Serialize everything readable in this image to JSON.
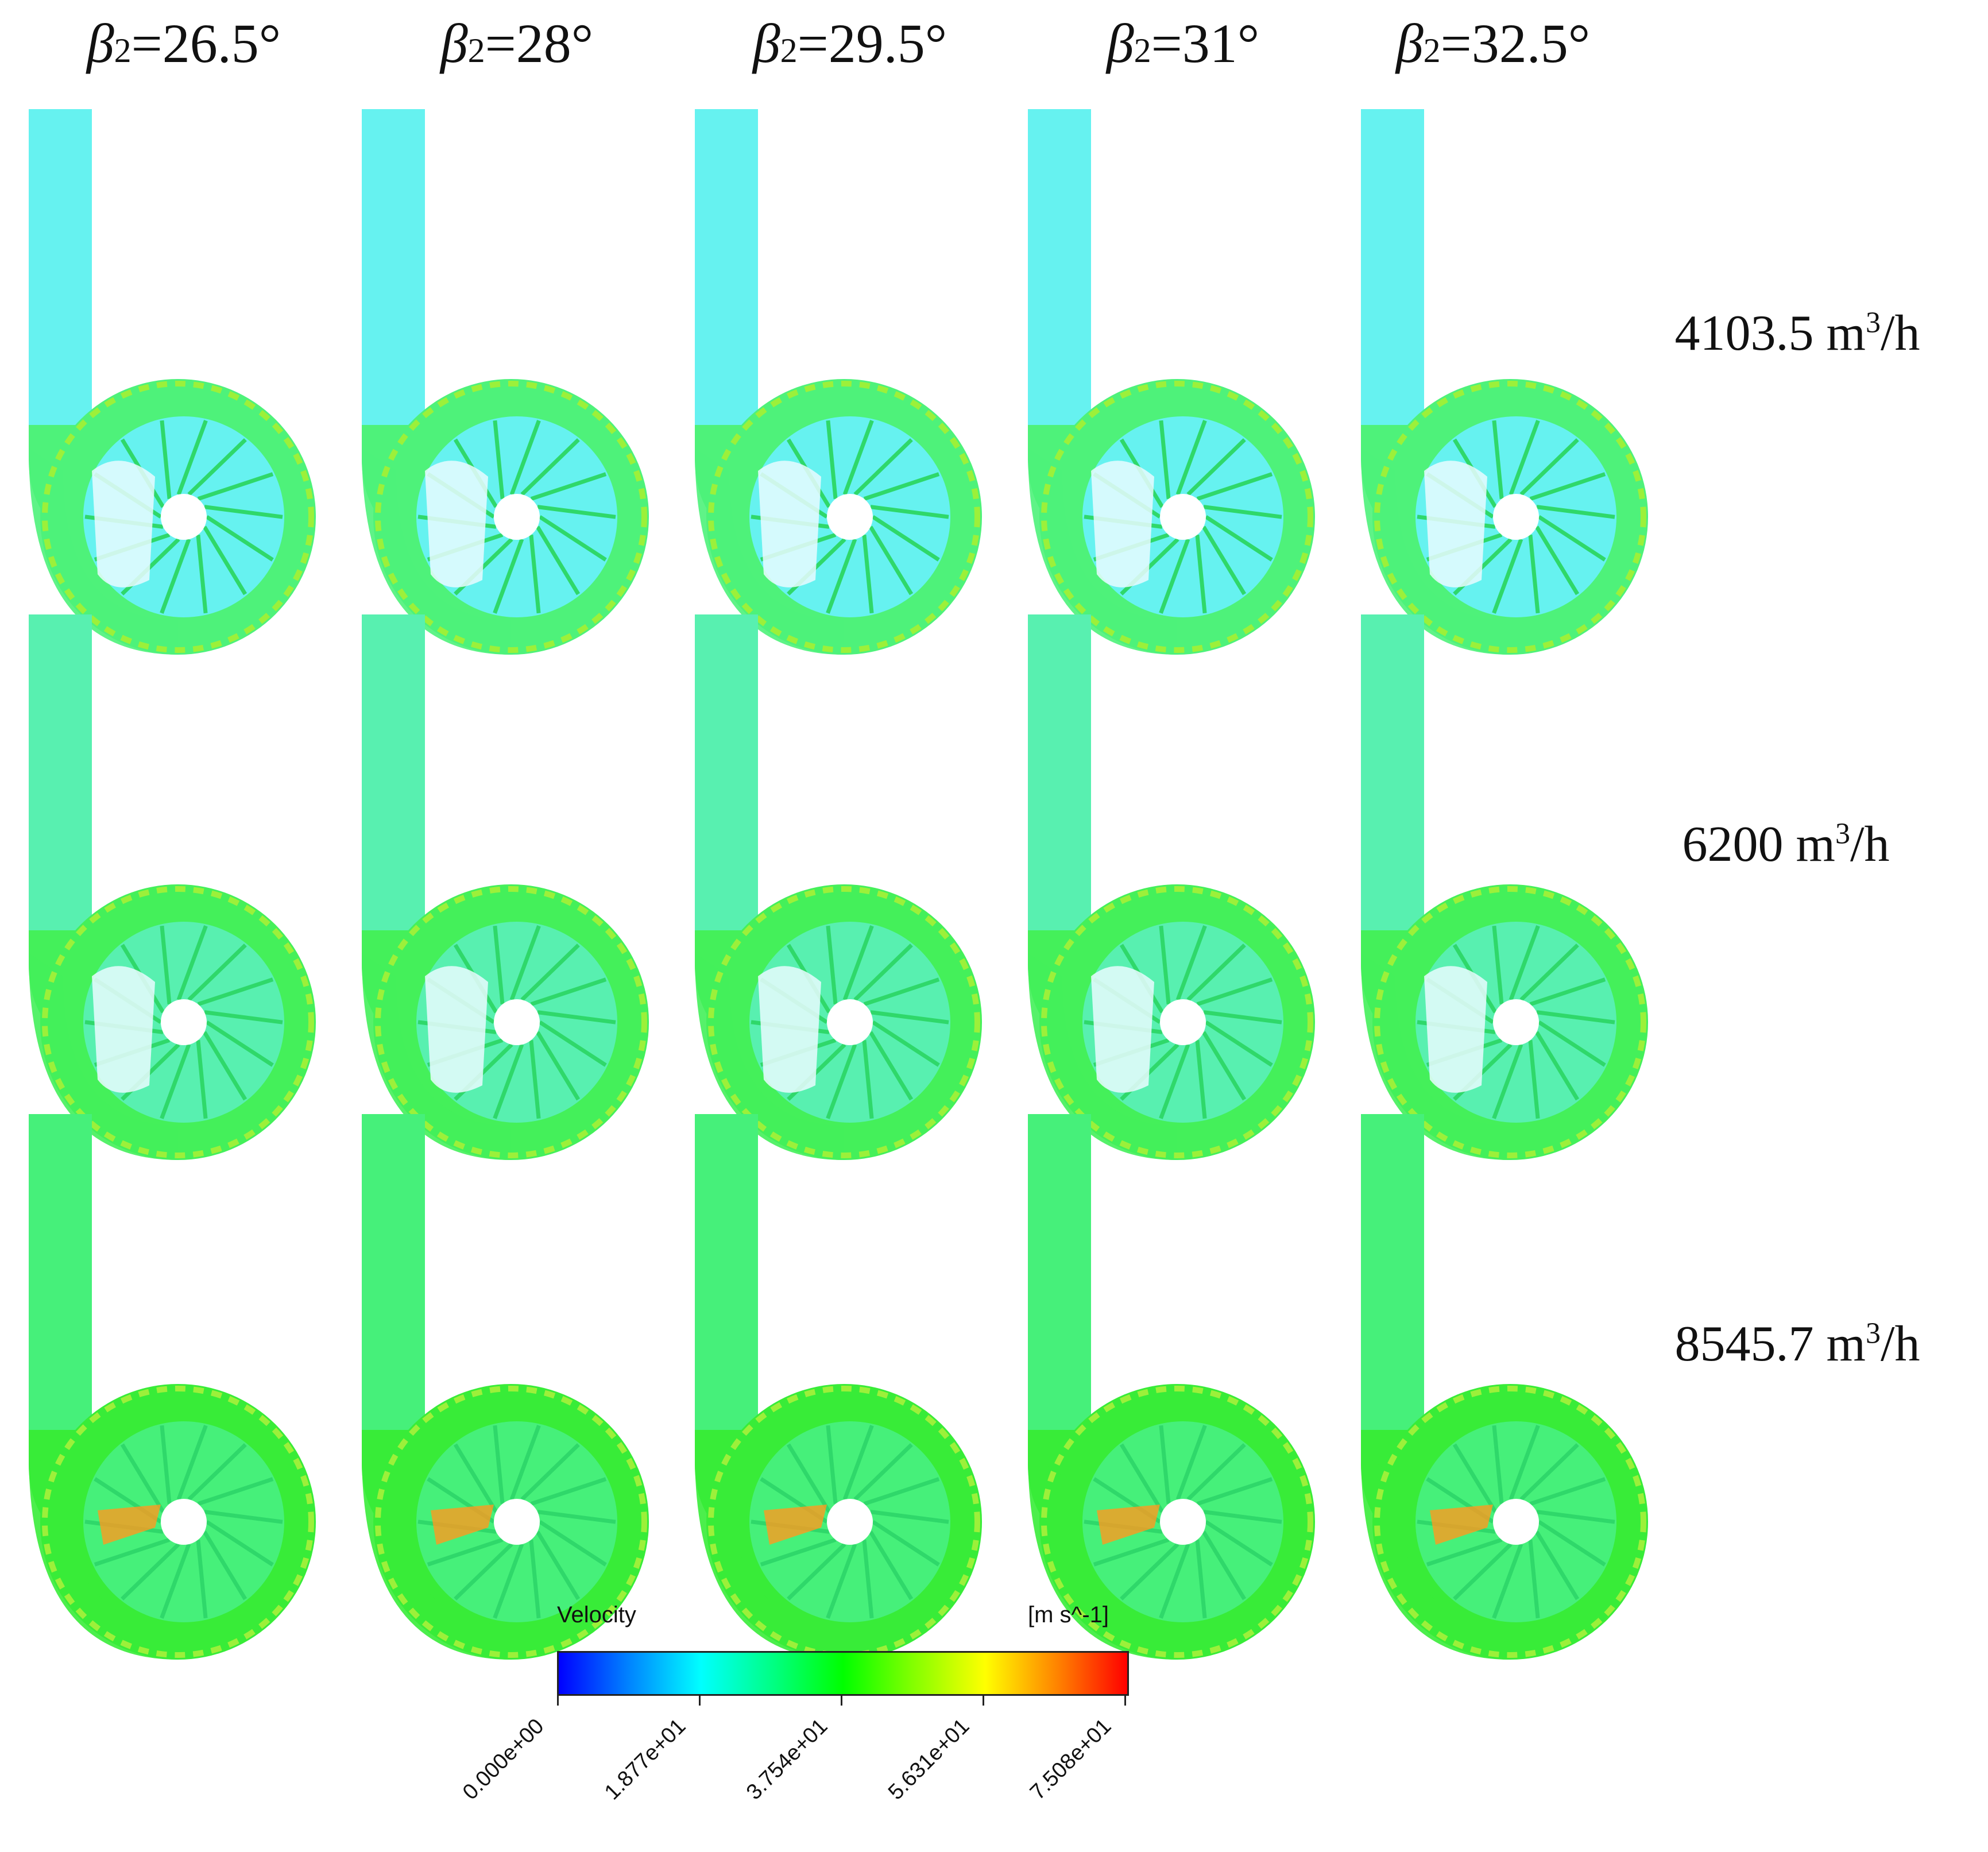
{
  "columns": [
    {
      "beta": "β",
      "sub": "2",
      "eq": "=26.5°"
    },
    {
      "beta": "β",
      "sub": "2",
      "eq": "=28°"
    },
    {
      "beta": "β",
      "sub": "2",
      "eq": "=29.5°"
    },
    {
      "beta": "β",
      "sub": "2",
      "eq": "=31°"
    },
    {
      "beta": "β",
      "sub": "2",
      "eq": "=32.5°"
    }
  ],
  "rows": [
    {
      "flow": "4103.5 m",
      "exp": "3",
      "unit": "/h"
    },
    {
      "flow": "6200 m",
      "exp": "3",
      "unit": "/h"
    },
    {
      "flow": "8545.7 m",
      "exp": "3",
      "unit": "/h"
    }
  ],
  "legend": {
    "title": "Velocity",
    "unit": "[m s^-1]",
    "ticks": [
      "0.000e+00",
      "1.877e+01",
      "3.754e+01",
      "5.631e+01",
      "7.508e+01"
    ]
  },
  "colors": {
    "low": "#66f0f0",
    "mid": "#4df56a",
    "high": "#33ee33",
    "jet": "#ff9a1f"
  }
}
